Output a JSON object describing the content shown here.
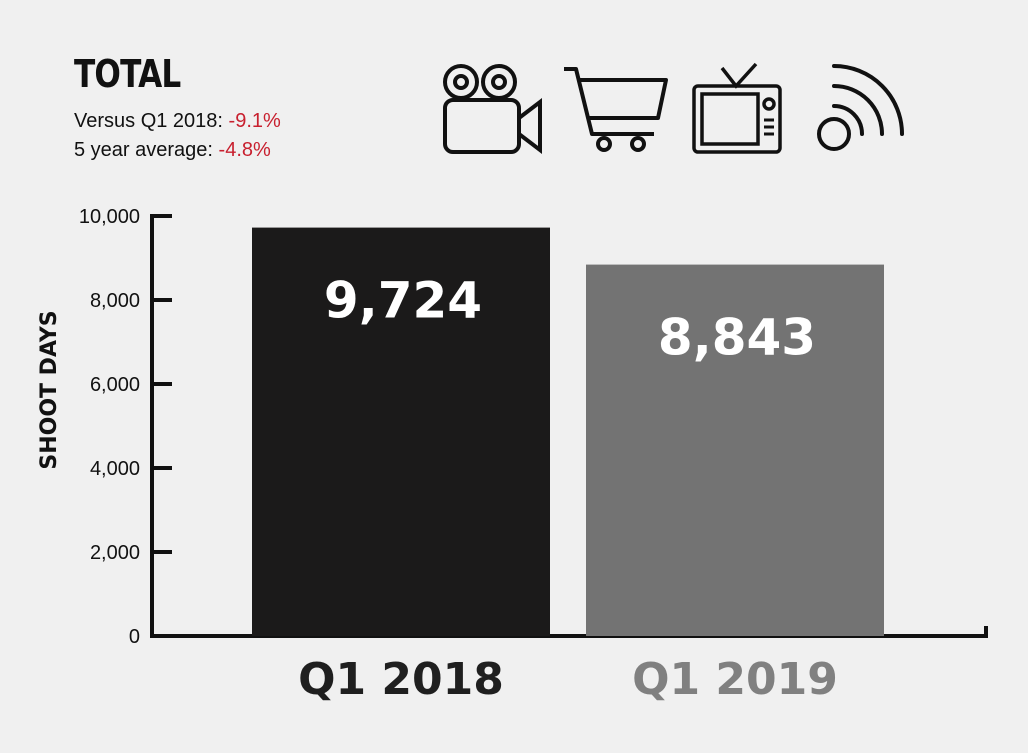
{
  "header": {
    "title": "TOTAL",
    "stats": [
      {
        "label": "Versus Q1 2018: ",
        "value": "-9.1%"
      },
      {
        "label": "5 year average: ",
        "value": "-4.8%"
      }
    ],
    "value_color": "#c8202f",
    "icons": [
      "movie-camera-icon",
      "shopping-cart-icon",
      "television-icon",
      "wireless-signal-icon"
    ]
  },
  "chart_data": {
    "type": "bar",
    "categories": [
      "Q1 2018",
      "Q1 2019"
    ],
    "values": [
      9724,
      8843
    ],
    "value_labels": [
      "9,724",
      "8,843"
    ],
    "bar_colors": [
      "#1b1a1a",
      "#737373"
    ],
    "category_label_colors": [
      "#1f1f1f",
      "#808080"
    ],
    "ylabel": "SHOOT DAYS",
    "ylim": [
      0,
      10000
    ],
    "yticks": [
      0,
      2000,
      4000,
      6000,
      8000,
      10000
    ],
    "ytick_labels": [
      "0",
      "2,000",
      "4,000",
      "6,000",
      "8,000",
      "10,000"
    ],
    "grid": false,
    "legend": "none"
  }
}
